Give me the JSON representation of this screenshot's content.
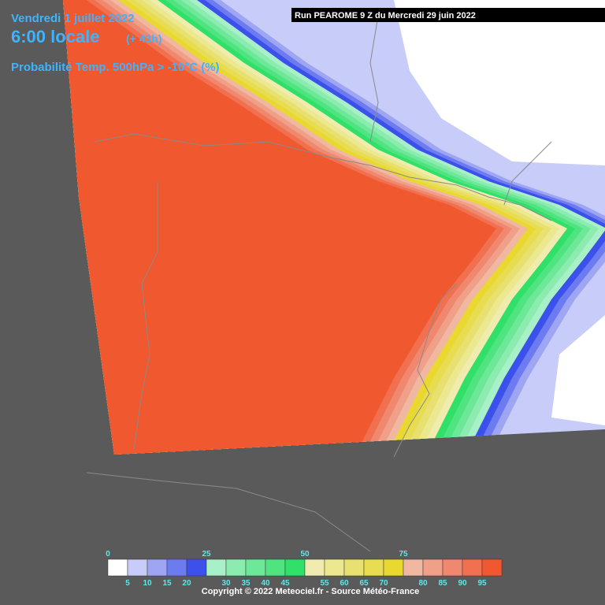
{
  "header": {
    "date": "Vendredi 1 juillet 2022",
    "time": "6:00 locale",
    "offset": "(+ 43h)",
    "parameter": "Probabilité Temp. 500hPa > -10°C (%)"
  },
  "run": "Run PEAROME 9 Z du Mercredi 29 juin 2022",
  "legend": {
    "levels": [
      {
        "value": 0,
        "color": "#ffffff"
      },
      {
        "value": 5,
        "color": "#c8ccf8"
      },
      {
        "value": 10,
        "color": "#9ea6f4"
      },
      {
        "value": 15,
        "color": "#6c7cf0"
      },
      {
        "value": 20,
        "color": "#3c50ec"
      },
      {
        "value": 25,
        "color": "#a8f0c8"
      },
      {
        "value": 30,
        "color": "#8cecb0"
      },
      {
        "value": 35,
        "color": "#6ce898"
      },
      {
        "value": 40,
        "color": "#50e480"
      },
      {
        "value": 45,
        "color": "#30e068"
      },
      {
        "value": 50,
        "color": "#f0ecb0"
      },
      {
        "value": 55,
        "color": "#ece890"
      },
      {
        "value": 60,
        "color": "#e8e070"
      },
      {
        "value": 65,
        "color": "#e8dc50"
      },
      {
        "value": 70,
        "color": "#e8d830"
      },
      {
        "value": 75,
        "color": "#f0b8a0"
      },
      {
        "value": 80,
        "color": "#f0a088"
      },
      {
        "value": 85,
        "color": "#f08870"
      },
      {
        "value": 90,
        "color": "#f07050"
      },
      {
        "value": 95,
        "color": "#f05830"
      }
    ]
  },
  "copyright": "Copyright © 2022 Meteociel.fr - Source Météo-France"
}
